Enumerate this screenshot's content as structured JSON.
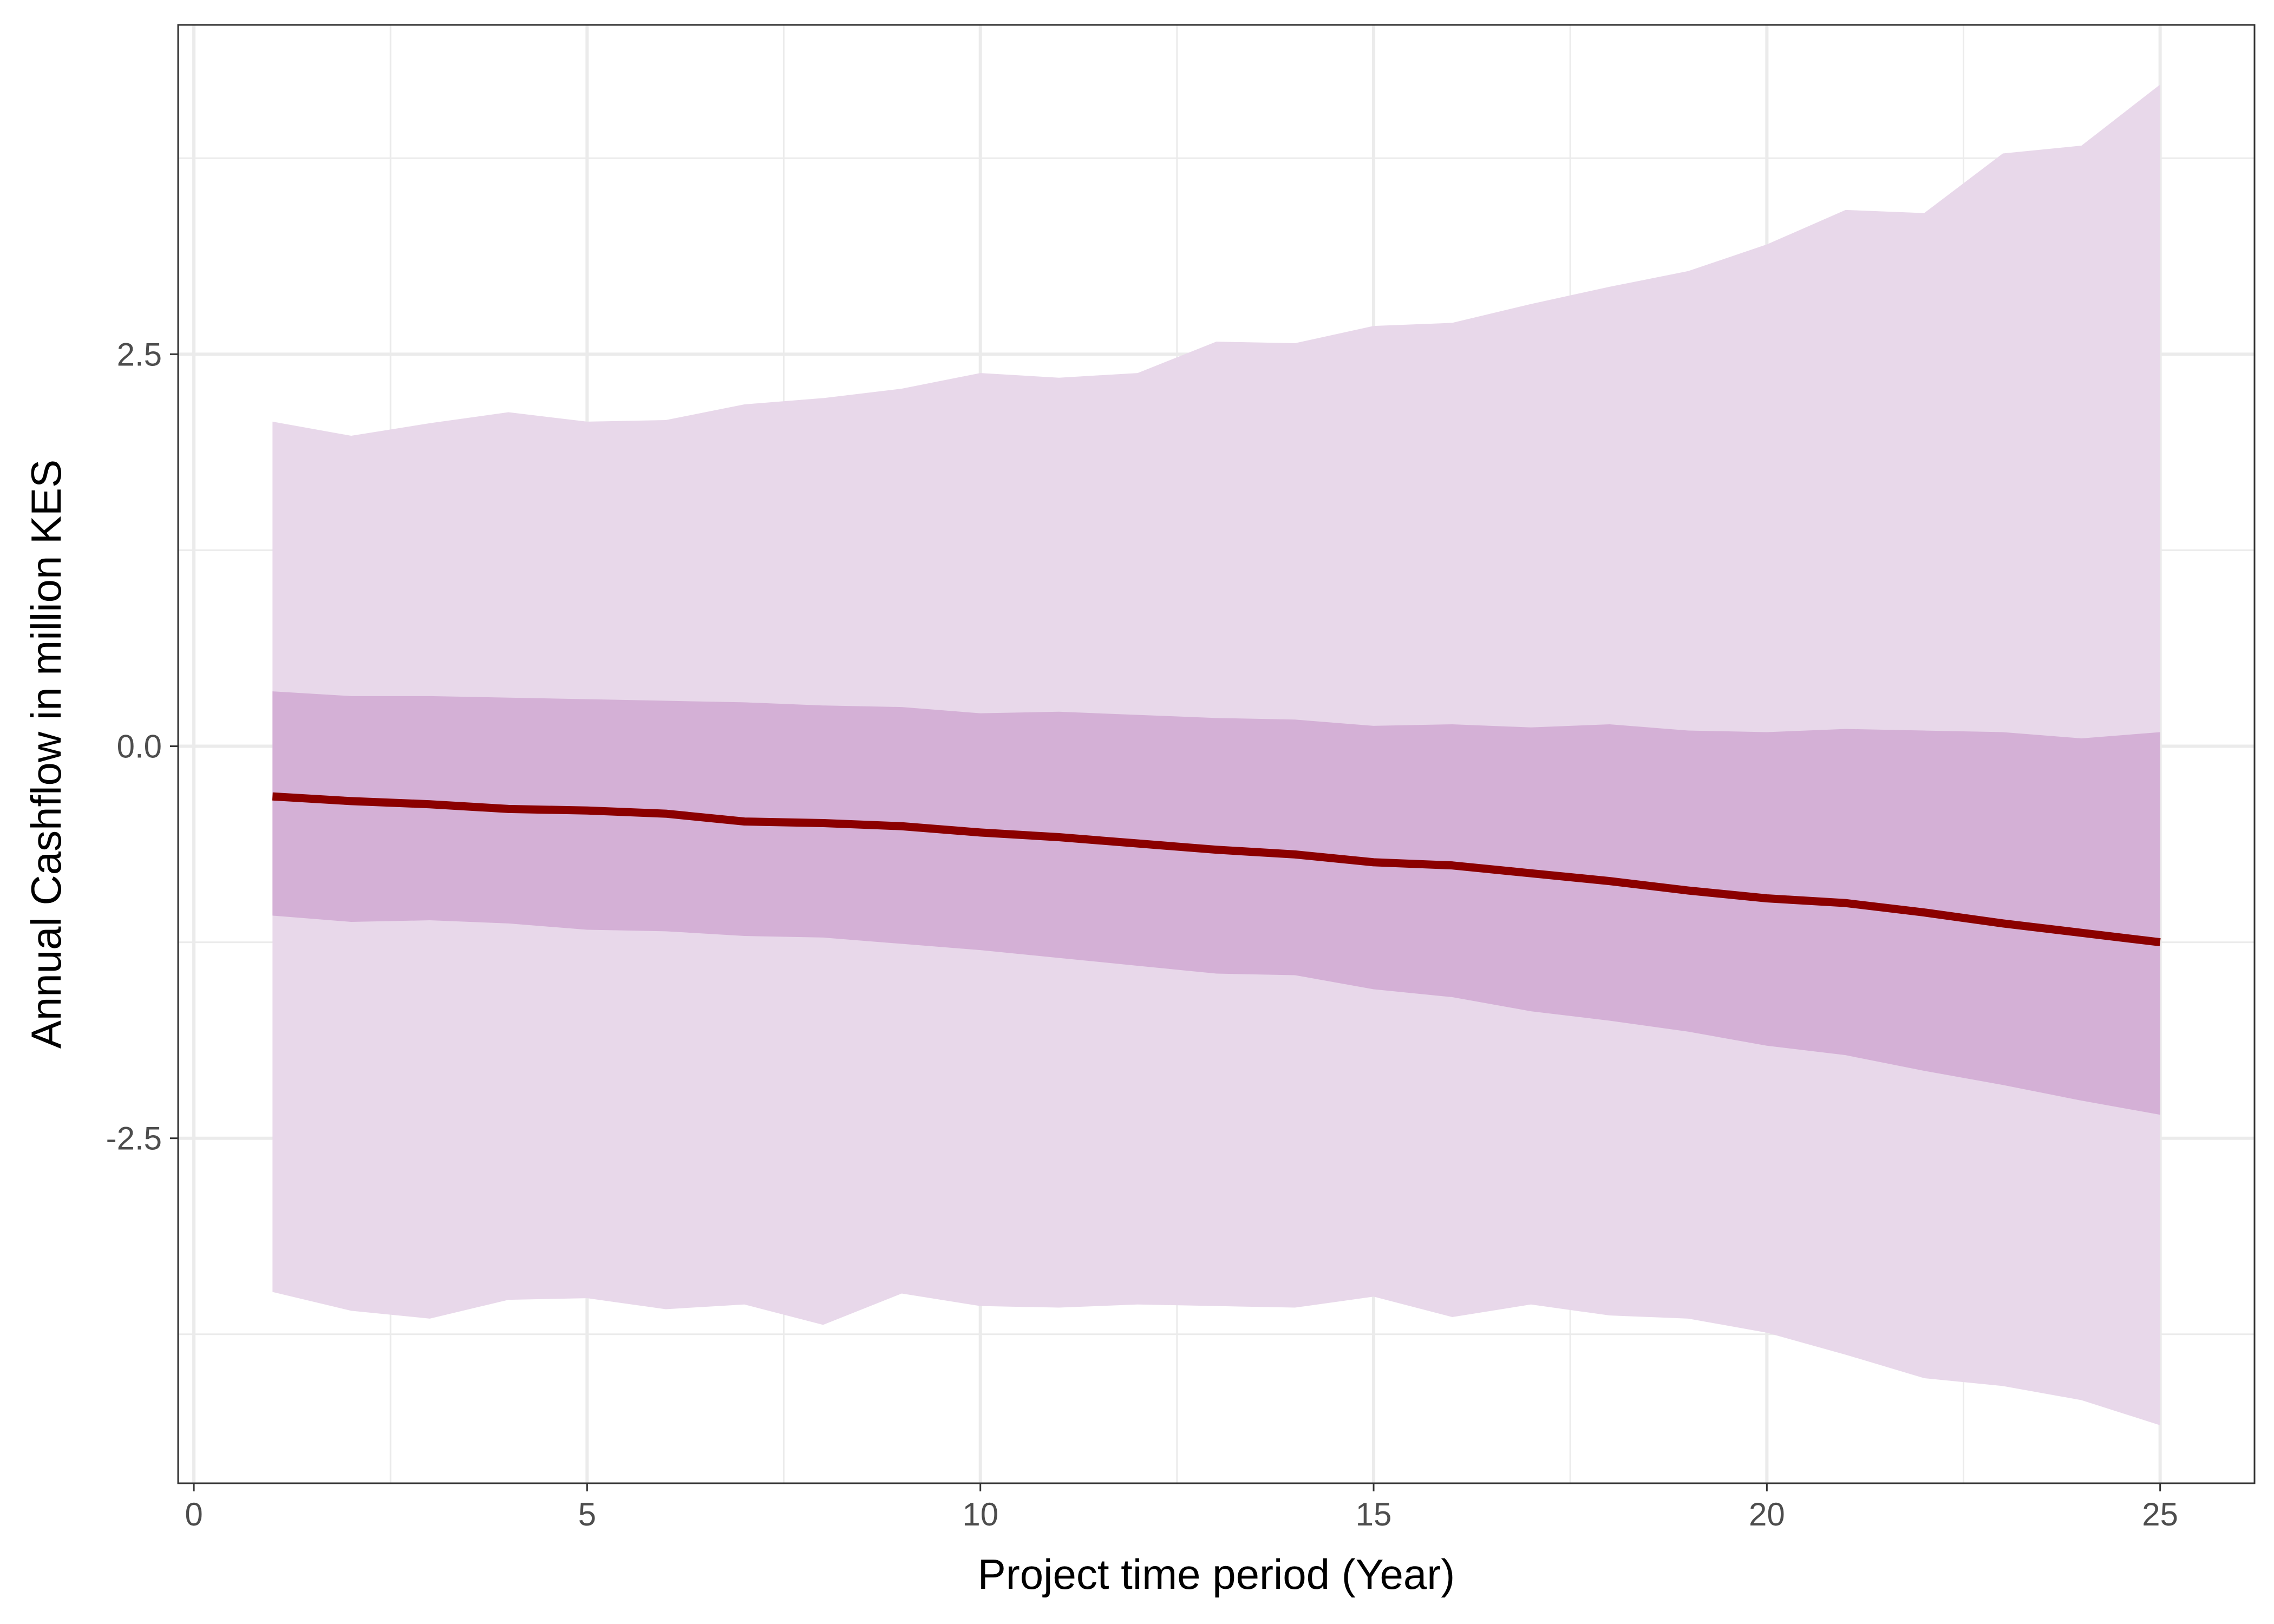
{
  "chart_data": {
    "type": "area",
    "title": "",
    "xlabel": "Project time period (Year)",
    "ylabel": "Annual Cashflow in million KES",
    "xlim": [
      -0.2,
      26.2
    ],
    "ylim": [
      -4.7,
      4.6
    ],
    "x_ticks": [
      0,
      5,
      10,
      15,
      20,
      25
    ],
    "x_tick_labels": [
      "0",
      "5",
      "10",
      "15",
      "20",
      "25"
    ],
    "x_minor_ticks": [
      2.5,
      7.5,
      12.5,
      17.5,
      22.5
    ],
    "y_ticks": [
      2.5,
      0.0,
      -2.5
    ],
    "y_tick_labels": [
      "2.5",
      "0.0",
      "-2.5"
    ],
    "y_minor_ticks": [
      3.75,
      1.25,
      -1.25,
      -3.75
    ],
    "grid": true,
    "legend": "none",
    "x": [
      1,
      2,
      3,
      4,
      5,
      6,
      7,
      8,
      9,
      10,
      11,
      12,
      13,
      14,
      15,
      16,
      17,
      18,
      19,
      20,
      21,
      22,
      23,
      24,
      25
    ],
    "series": [
      {
        "type": "band",
        "color": "#e8d8ea",
        "upper": [
          2.07,
          1.98,
          2.06,
          2.13,
          2.07,
          2.08,
          2.18,
          2.22,
          2.28,
          2.38,
          2.35,
          2.38,
          2.58,
          2.57,
          2.68,
          2.7,
          2.82,
          2.93,
          3.03,
          3.2,
          3.42,
          3.4,
          3.78,
          3.83,
          4.22
        ],
        "lower": [
          -3.48,
          -3.6,
          -3.65,
          -3.53,
          -3.52,
          -3.59,
          -3.56,
          -3.69,
          -3.49,
          -3.57,
          -3.58,
          -3.56,
          -3.57,
          -3.58,
          -3.51,
          -3.64,
          -3.56,
          -3.63,
          -3.65,
          -3.74,
          -3.88,
          -4.03,
          -4.08,
          -4.17,
          -4.33
        ]
      },
      {
        "type": "band",
        "color": "#d4b0d6",
        "upper": [
          0.35,
          0.32,
          0.32,
          0.31,
          0.3,
          0.29,
          0.28,
          0.26,
          0.25,
          0.21,
          0.22,
          0.2,
          0.18,
          0.17,
          0.13,
          0.14,
          0.12,
          0.14,
          0.1,
          0.09,
          0.11,
          0.1,
          0.09,
          0.05,
          0.09
        ],
        "lower": [
          -1.08,
          -1.12,
          -1.11,
          -1.13,
          -1.17,
          -1.18,
          -1.21,
          -1.22,
          -1.26,
          -1.3,
          -1.35,
          -1.4,
          -1.45,
          -1.46,
          -1.55,
          -1.6,
          -1.69,
          -1.75,
          -1.82,
          -1.91,
          -1.97,
          -2.07,
          -2.16,
          -2.26,
          -2.35
        ]
      },
      {
        "type": "line",
        "color": "#8b0000",
        "values": [
          -0.32,
          -0.35,
          -0.37,
          -0.4,
          -0.41,
          -0.43,
          -0.48,
          -0.49,
          -0.51,
          -0.55,
          -0.58,
          -0.62,
          -0.66,
          -0.69,
          -0.74,
          -0.76,
          -0.81,
          -0.86,
          -0.92,
          -0.97,
          -1.0,
          -1.06,
          -1.13,
          -1.19,
          -1.25
        ]
      }
    ]
  }
}
